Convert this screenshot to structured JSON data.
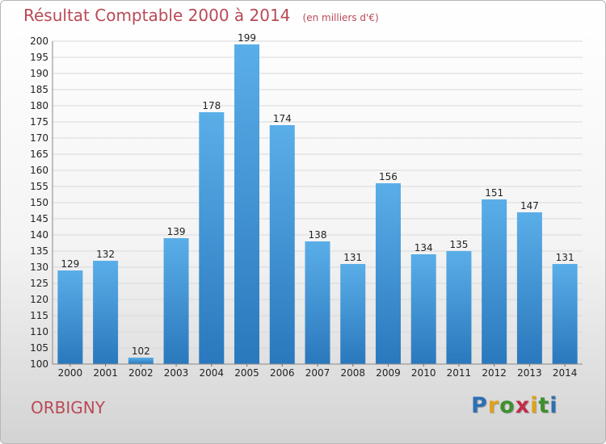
{
  "chart_data": {
    "type": "bar",
    "title": "Résultat Comptable 2000 à 2014",
    "subtitle": "(en milliers d'€)",
    "xlabel": "",
    "ylabel": "",
    "categories": [
      "2000",
      "2001",
      "2002",
      "2003",
      "2004",
      "2005",
      "2006",
      "2007",
      "2008",
      "2009",
      "2010",
      "2011",
      "2012",
      "2013",
      "2014"
    ],
    "values": [
      129,
      132,
      102,
      139,
      178,
      199,
      174,
      138,
      131,
      156,
      134,
      135,
      151,
      147,
      131
    ],
    "ylim": [
      100,
      200
    ],
    "ytick_step": 5,
    "grid": true,
    "colors": {
      "bar_top": "#5aaee8",
      "bar_bottom": "#2a78bd",
      "grid": "#d9d9d9",
      "title": "#b84a56"
    }
  },
  "commune": "ORBIGNY",
  "logo": {
    "letters": [
      {
        "char": "P",
        "color": "#2f6fb2"
      },
      {
        "char": "r",
        "color": "#e0a21b"
      },
      {
        "char": "o",
        "color": "#3f8f2f"
      },
      {
        "char": "x",
        "color": "#c02c4a"
      },
      {
        "char": "i",
        "color": "#e0a21b"
      },
      {
        "char": "t",
        "color": "#3f8f2f"
      },
      {
        "char": "i",
        "color": "#2f6fb2"
      }
    ]
  }
}
